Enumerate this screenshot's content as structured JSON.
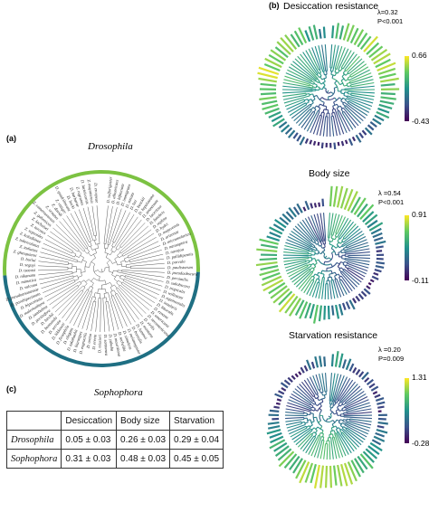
{
  "panel_a": {
    "label": "(a)",
    "clade_top": "Drosophila",
    "clade_bottom": "Sophophora",
    "species": [
      "D. sulfurigaster",
      "D. albomicans",
      "D. bifasciata",
      "D. immigrans",
      "D. nasuta",
      "D. lini",
      "D. busckii",
      "D. kepulauana",
      "D. ananassae",
      "D. lacertosa",
      "D. funebris",
      "D. repleta",
      "D. hydei",
      "D. mojavensis",
      "D. arizonae",
      "D. micromelanica",
      "D. nannoptera",
      "D. navojoa",
      "D. pallidipennis",
      "D. parvula",
      "D. paulistorum",
      "D. pseudoobscura",
      "D. persimilis",
      "D. subobscura",
      "D. tropicalis",
      "D. willistoni",
      "D. equinoxialis",
      "D. insularis",
      "D. littoralis",
      "D. ezoana",
      "D. americana",
      "D. novamexicana",
      "D. virilis",
      "D. montana",
      "D. lummei",
      "D. borealis",
      "D. melanogaster",
      "D. simulans",
      "D. sechellia",
      "D. mauritiana",
      "D. yakuba",
      "D. santomea",
      "D. teissieri",
      "D. erecta",
      "D. orena",
      "D. eugracilis",
      "D. biarmipes",
      "D. takahashii",
      "D. elegans",
      "D. ficusphila",
      "D. kikkawai",
      "D. serrata",
      "D. bunnanda",
      "D. birchii",
      "D. pectinifera",
      "D. jambulina",
      "D. malerkotliana",
      "D. bipectinata",
      "D. parabipectinata",
      "D. pseudoananassae",
      "D. vulcana",
      "D. mimetica",
      "D. nikananu",
      "D. tsacasi",
      "D. seguyi",
      "D. burlai",
      "Z. ghesquierei",
      "Z. indianus",
      "Z. tuberculatus",
      "Z. kolodkinae",
      "Z. sepsoides",
      "Z. taronus",
      "Z. lachaisei",
      "Z. gabonicus",
      "Z. camerounensis",
      "Z. ornatus",
      "Z. davidi",
      "Z. vittiger",
      "D. quadrilineata",
      "D. bocki",
      "D. barbarae",
      "Z. nigranus",
      "D. lacteicornis",
      "Z. mayottensis",
      "D. ercepeae"
    ]
  },
  "panel_b": {
    "label": "(b)",
    "trees": [
      {
        "title": "Desiccation resistance",
        "lambda": "λ=0.32",
        "p": "P<0.001",
        "cb_max": "0.66",
        "cb_min": "-0.43"
      },
      {
        "title": "Body size",
        "lambda": "λ =0.54",
        "p": "P<0.001",
        "cb_max": "0.91",
        "cb_min": "-0.11"
      },
      {
        "title": "Starvation resistance",
        "lambda": "λ =0.20",
        "p": "P=0.009",
        "cb_max": "1.31",
        "cb_min": "-0.28"
      }
    ]
  },
  "panel_c": {
    "label": "(c)",
    "columns": [
      "Desiccation",
      "Body size",
      "Starvation"
    ],
    "rows": [
      {
        "name": "Drosophila",
        "values": [
          "0.05 ± 0.03",
          "0.26 ± 0.03",
          "0.29 ± 0.04"
        ]
      },
      {
        "name": "Sophophora",
        "values": [
          "0.31 ± 0.03",
          "0.48 ± 0.03",
          "0.45 ± 0.05"
        ]
      }
    ]
  },
  "colors": {
    "arc_top": "#7cc242",
    "arc_bottom": "#1f6f83",
    "viridis": [
      "#440154",
      "#3b528b",
      "#21918c",
      "#5ec962",
      "#fde725"
    ]
  }
}
